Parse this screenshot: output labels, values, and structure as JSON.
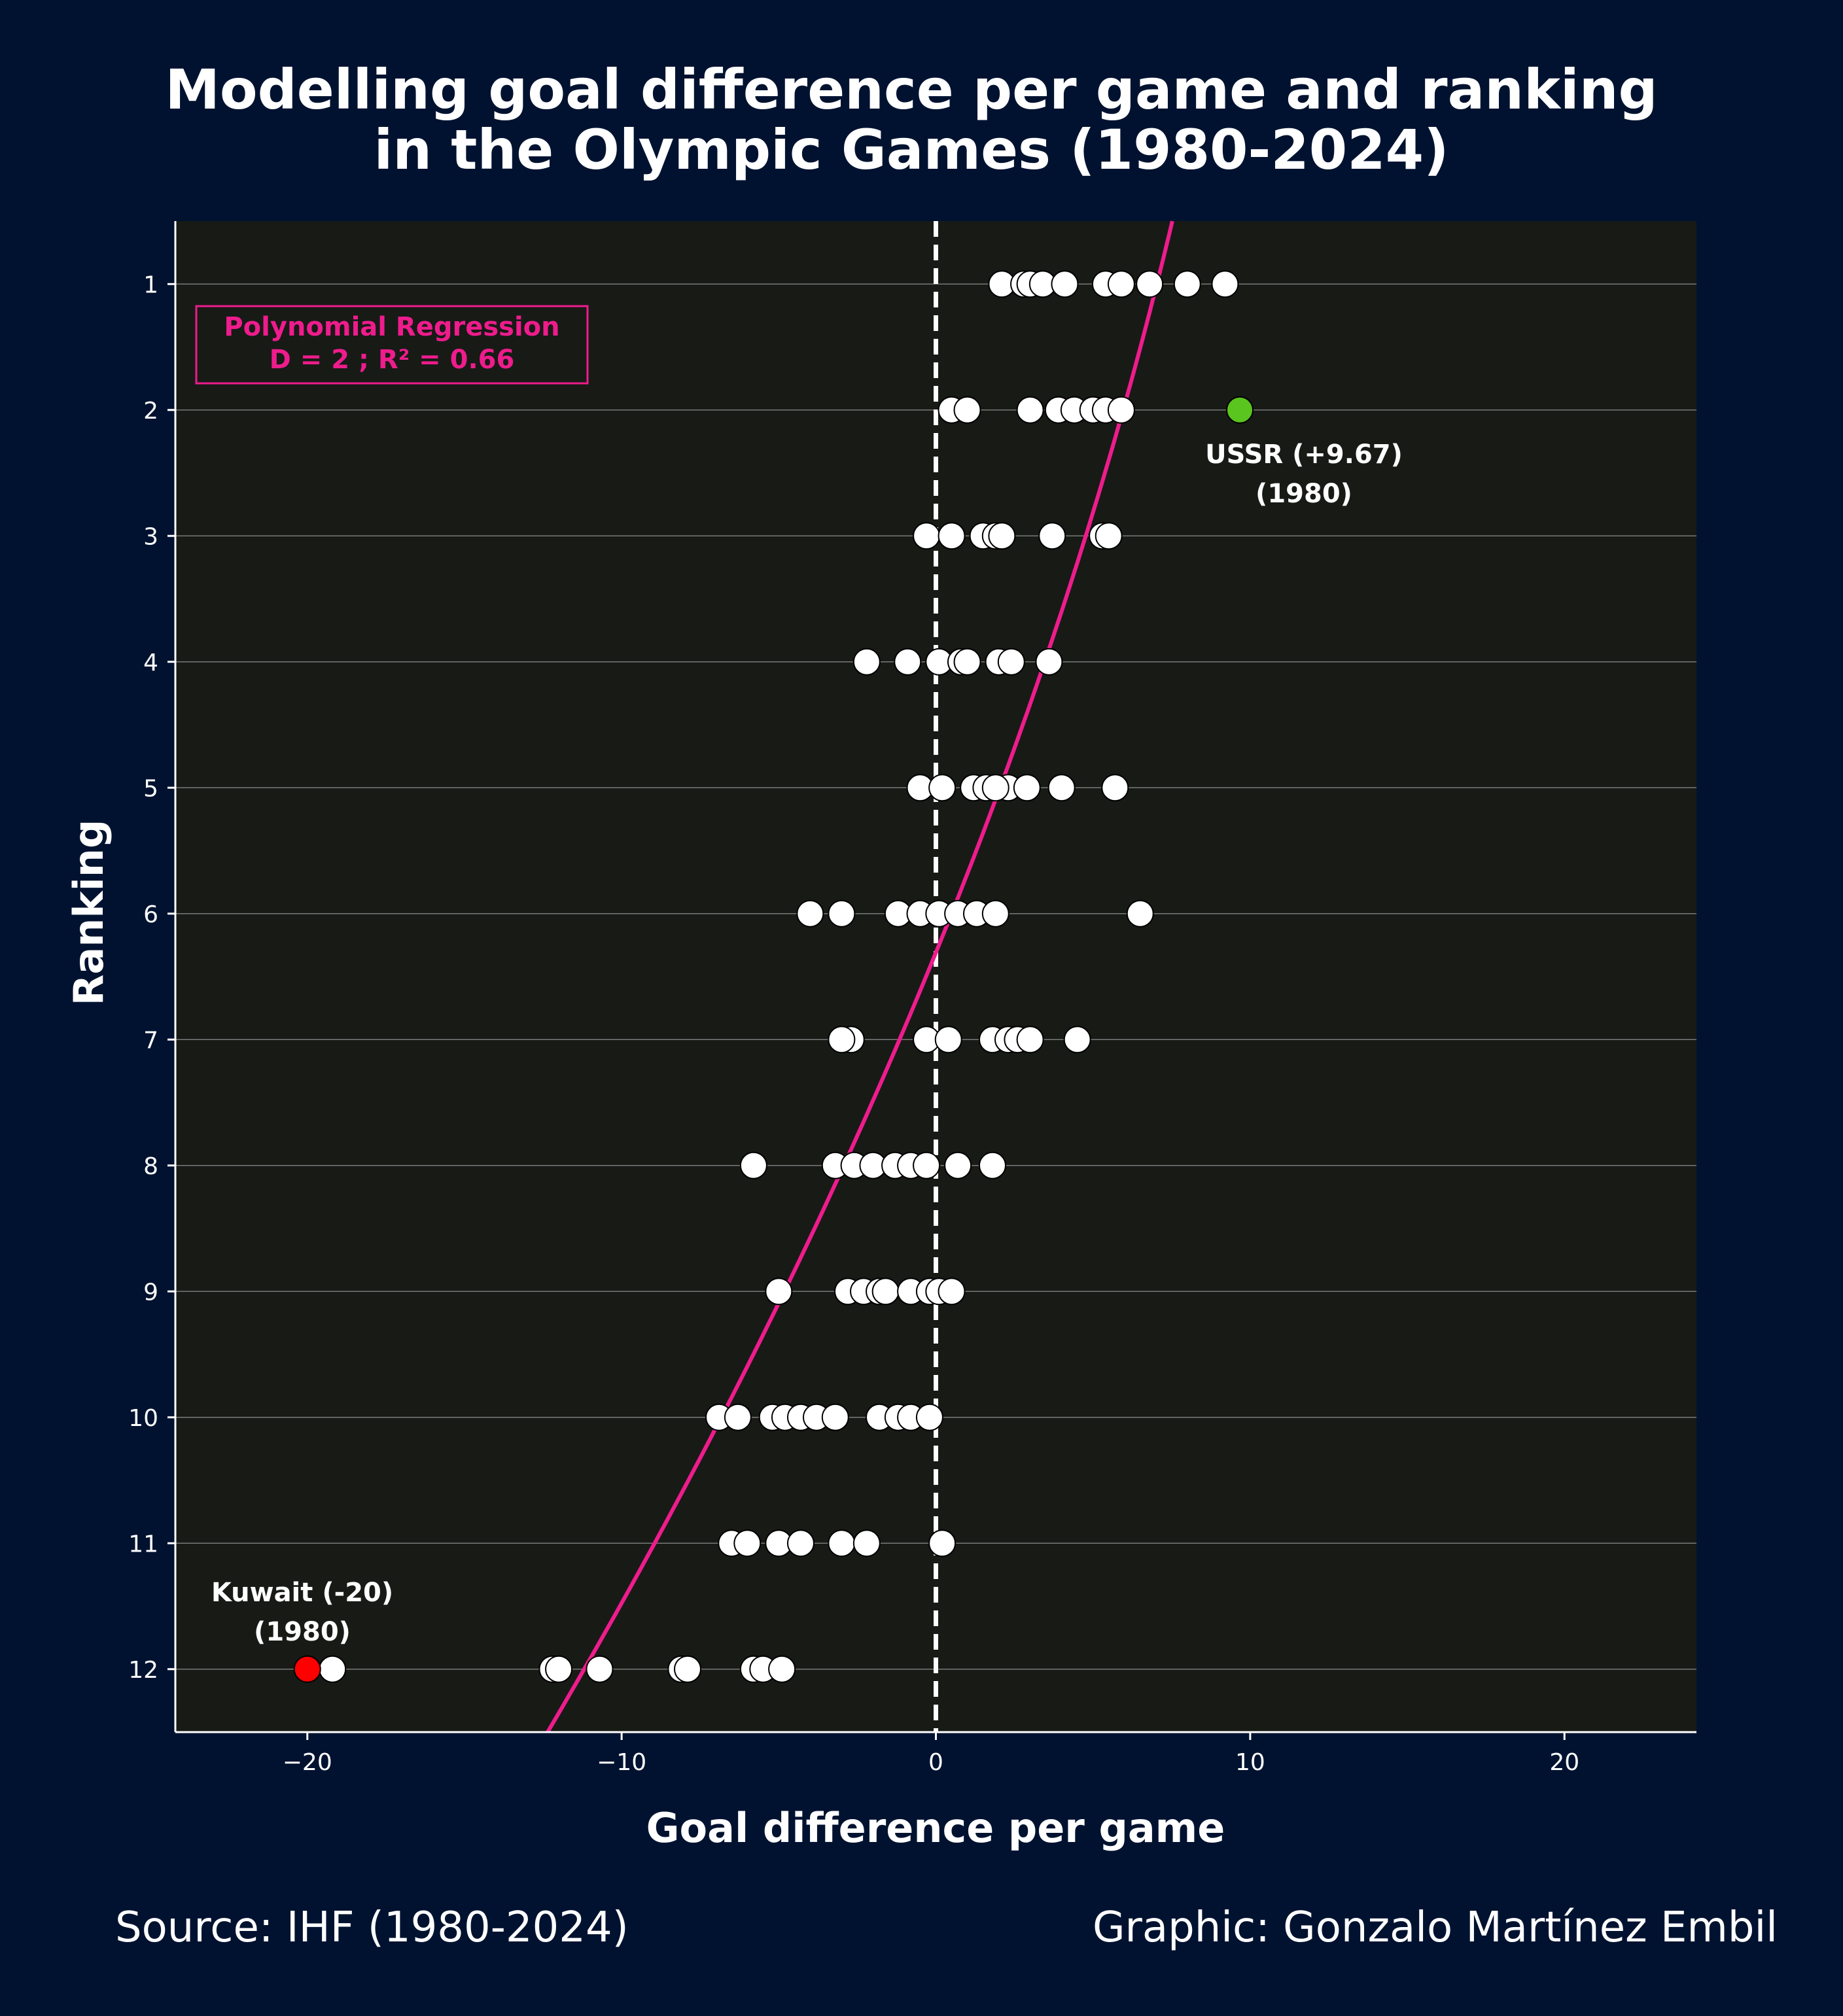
{
  "colors": {
    "background": "#001230",
    "plot_background": "#181a16",
    "regression": "#ee1c8c",
    "point_fill": "#ffffff",
    "point_edge": "#000000",
    "highlight_max": "#5ac51e",
    "highlight_min": "#ff0000",
    "zero_line": "#ffffff",
    "grid": "#9a9a9a",
    "text": "#ffffff"
  },
  "chart_data": {
    "type": "scatter",
    "title": "Modelling goal difference per game and ranking\nin the Olympic Games (1980-2024)",
    "xlabel": "Goal difference per game",
    "ylabel": "Ranking",
    "xlim": [
      -24.2,
      24.2
    ],
    "ylim": [
      0.5,
      12.5
    ],
    "y_inverted": true,
    "x_ticks": [
      -20,
      -10,
      0,
      10,
      20
    ],
    "x_tick_labels": [
      "−20",
      "−10",
      "0",
      "10",
      "20"
    ],
    "y_ticks": [
      1,
      2,
      3,
      4,
      5,
      6,
      7,
      8,
      9,
      10,
      11,
      12
    ],
    "y_tick_labels": [
      "1",
      "2",
      "3",
      "4",
      "5",
      "6",
      "7",
      "8",
      "9",
      "10",
      "11",
      "12"
    ],
    "grid": "horizontal",
    "zero_line": {
      "x": 0,
      "style": "dashed"
    },
    "regression": {
      "label_line1": "Polynomial Regression",
      "label_line2": "D = 2 ; R² = 0.66",
      "label_position": "top-left",
      "degree": 2,
      "curve": [
        {
          "x": -12.3,
          "y": 12.5
        },
        {
          "x": -5.0,
          "y": 9.0
        },
        {
          "x": 0.0,
          "y": 6.4
        },
        {
          "x": 7.5,
          "y": 0.5
        }
      ]
    },
    "points": [
      {
        "y": 1,
        "x": [
          2.1,
          2.8,
          3.0,
          3.4,
          4.1,
          5.4,
          5.9,
          6.8,
          8.0,
          9.2
        ]
      },
      {
        "y": 2,
        "x": [
          0.5,
          1.0,
          3.0,
          3.9,
          4.4,
          5.0,
          5.4,
          5.9
        ]
      },
      {
        "y": 3,
        "x": [
          -0.3,
          0.5,
          1.5,
          1.9,
          2.1,
          3.7,
          5.3,
          5.5
        ]
      },
      {
        "y": 4,
        "x": [
          -2.2,
          -0.9,
          0.1,
          0.8,
          1.0,
          2.0,
          2.4,
          3.6
        ]
      },
      {
        "y": 5,
        "x": [
          -0.5,
          0.2,
          1.2,
          1.6,
          2.3,
          1.9,
          2.9,
          4.0,
          5.7
        ]
      },
      {
        "y": 6,
        "x": [
          -4.0,
          -3.0,
          -1.2,
          -0.5,
          0.1,
          0.7,
          1.3,
          1.9,
          6.5
        ]
      },
      {
        "y": 7,
        "x": [
          -2.7,
          -3.0,
          -0.3,
          0.4,
          1.8,
          2.3,
          2.6,
          3.0,
          4.5
        ]
      },
      {
        "y": 8,
        "x": [
          -5.8,
          -3.2,
          -2.6,
          -2.0,
          -1.3,
          -0.8,
          -0.3,
          0.7,
          1.8
        ]
      },
      {
        "y": 9,
        "x": [
          -5.0,
          -2.8,
          -2.3,
          -1.8,
          -1.6,
          -0.8,
          -0.2,
          0.1,
          0.5
        ]
      },
      {
        "y": 10,
        "x": [
          -6.9,
          -6.3,
          -5.2,
          -4.8,
          -4.3,
          -3.8,
          -3.2,
          -1.8,
          -1.2,
          -0.8,
          -0.2
        ]
      },
      {
        "y": 11,
        "x": [
          -6.5,
          -6.0,
          -5.0,
          -4.3,
          -3.0,
          -2.2,
          0.2
        ]
      },
      {
        "y": 12,
        "x": [
          -19.2,
          -12.2,
          -12.0,
          -10.7,
          -8.1,
          -7.9,
          -5.8,
          -5.5,
          -4.9
        ]
      }
    ],
    "highlights": [
      {
        "x": 9.67,
        "y": 2,
        "label_line1": "USSR (+9.67)",
        "label_line2": "(1980)",
        "color": "#5ac51e"
      },
      {
        "x": -20,
        "y": 12,
        "label_line1": "Kuwait (-20)",
        "label_line2": "(1980)",
        "color": "#ff0000"
      }
    ]
  },
  "footer": {
    "source": "Source: IHF (1980-2024)",
    "credit": "Graphic: Gonzalo Martínez Embil"
  }
}
